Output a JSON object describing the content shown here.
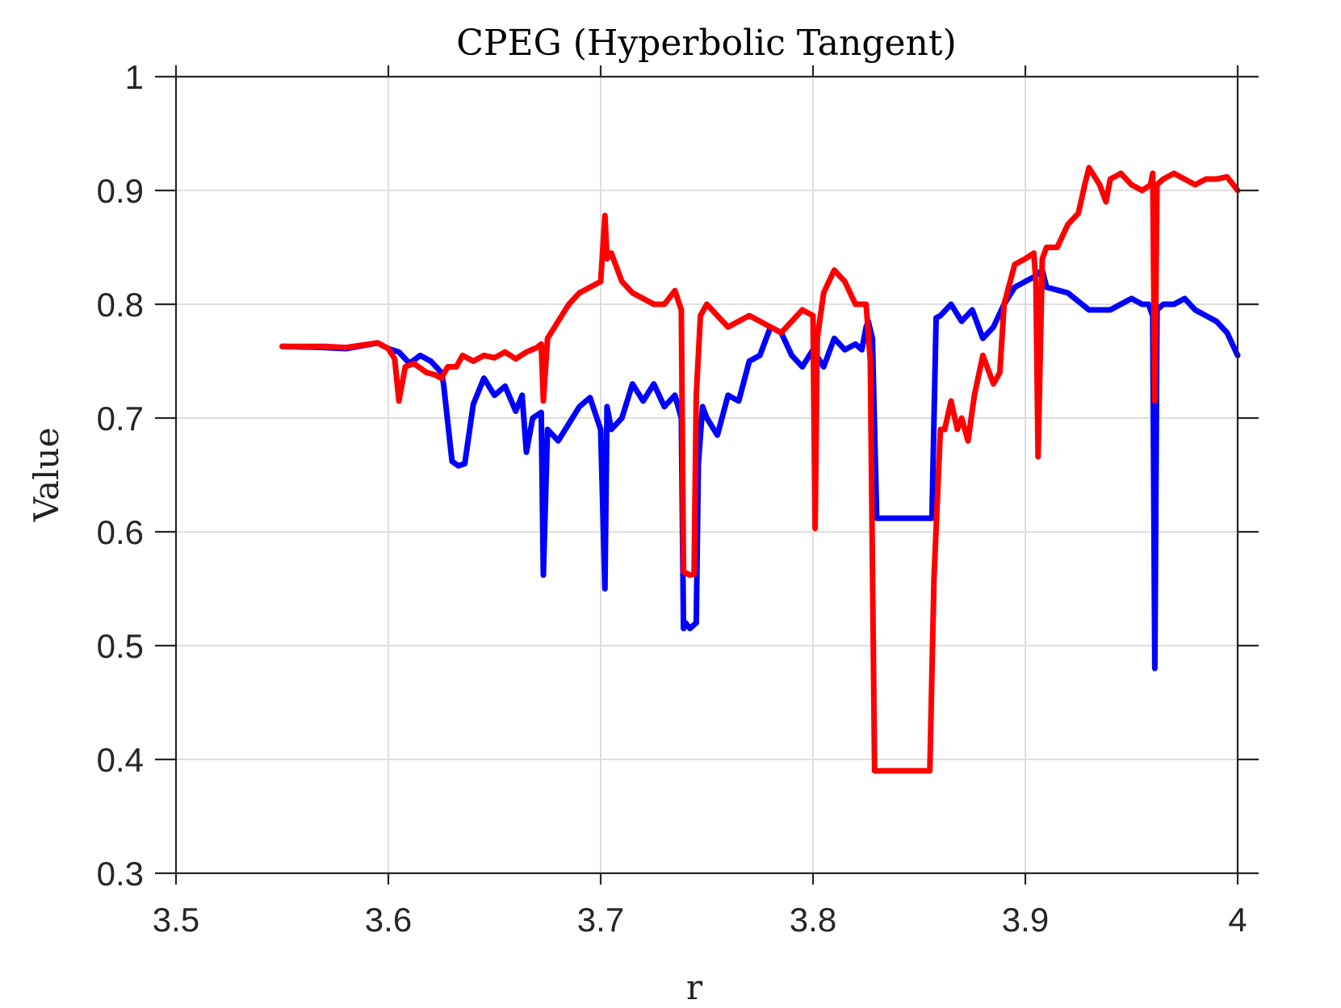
{
  "chart_data": {
    "type": "line",
    "title": "CPEG (Hyperbolic Tangent)",
    "xlabel": "r",
    "ylabel": "Value",
    "xlim": [
      3.5,
      4.0
    ],
    "ylim": [
      0.3,
      1.0
    ],
    "x_ticks": [
      "3.5",
      "3.6",
      "3.7",
      "3.8",
      "3.9",
      "4"
    ],
    "x_tick_values": [
      3.5,
      3.6,
      3.7,
      3.8,
      3.9,
      4.0
    ],
    "y_ticks": [
      "0.3",
      "0.4",
      "0.5",
      "0.6",
      "0.7",
      "0.8",
      "0.9",
      "1"
    ],
    "y_tick_values": [
      0.3,
      0.4,
      0.5,
      0.6,
      0.7,
      0.8,
      0.9,
      1.0
    ],
    "grid": true,
    "series": [
      {
        "color": "#0000ff",
        "x": [
          3.55,
          3.57,
          3.58,
          3.595,
          3.6,
          3.605,
          3.61,
          3.615,
          3.62,
          3.625,
          3.626,
          3.63,
          3.633,
          3.636,
          3.64,
          3.645,
          3.65,
          3.655,
          3.66,
          3.663,
          3.665,
          3.668,
          3.672,
          3.673,
          3.675,
          3.68,
          3.685,
          3.69,
          3.695,
          3.7,
          3.702,
          3.703,
          3.705,
          3.71,
          3.715,
          3.72,
          3.725,
          3.73,
          3.735,
          3.738,
          3.739,
          3.74,
          3.742,
          3.745,
          3.746,
          3.748,
          3.75,
          3.755,
          3.76,
          3.765,
          3.77,
          3.775,
          3.78,
          3.785,
          3.79,
          3.795,
          3.8,
          3.805,
          3.81,
          3.815,
          3.82,
          3.823,
          3.825,
          3.826,
          3.828,
          3.83,
          3.84,
          3.85,
          3.856,
          3.858,
          3.86,
          3.865,
          3.87,
          3.875,
          3.88,
          3.885,
          3.89,
          3.895,
          3.9,
          3.905,
          3.908,
          3.91,
          3.92,
          3.93,
          3.94,
          3.95,
          3.955,
          3.958,
          3.96,
          3.961,
          3.962,
          3.965,
          3.97,
          3.975,
          3.98,
          3.985,
          3.99,
          3.995,
          4.0
        ],
        "y": [
          0.763,
          0.762,
          0.761,
          0.766,
          0.761,
          0.758,
          0.748,
          0.755,
          0.75,
          0.74,
          0.73,
          0.662,
          0.658,
          0.66,
          0.712,
          0.735,
          0.72,
          0.728,
          0.706,
          0.72,
          0.67,
          0.7,
          0.705,
          0.562,
          0.69,
          0.68,
          0.695,
          0.71,
          0.718,
          0.69,
          0.55,
          0.71,
          0.69,
          0.7,
          0.73,
          0.715,
          0.73,
          0.71,
          0.72,
          0.7,
          0.515,
          0.52,
          0.515,
          0.52,
          0.66,
          0.71,
          0.7,
          0.685,
          0.72,
          0.715,
          0.75,
          0.755,
          0.78,
          0.775,
          0.755,
          0.745,
          0.76,
          0.745,
          0.77,
          0.76,
          0.765,
          0.76,
          0.78,
          0.785,
          0.77,
          0.612,
          0.612,
          0.612,
          0.612,
          0.788,
          0.79,
          0.8,
          0.785,
          0.795,
          0.77,
          0.78,
          0.8,
          0.815,
          0.82,
          0.825,
          0.83,
          0.815,
          0.81,
          0.795,
          0.795,
          0.805,
          0.8,
          0.8,
          0.79,
          0.48,
          0.795,
          0.8,
          0.8,
          0.805,
          0.795,
          0.79,
          0.785,
          0.775,
          0.755
        ]
      },
      {
        "color": "#ff0000",
        "x": [
          3.55,
          3.57,
          3.58,
          3.595,
          3.6,
          3.603,
          3.605,
          3.608,
          3.612,
          3.618,
          3.622,
          3.625,
          3.628,
          3.632,
          3.635,
          3.64,
          3.645,
          3.65,
          3.655,
          3.66,
          3.665,
          3.67,
          3.672,
          3.673,
          3.675,
          3.68,
          3.685,
          3.69,
          3.695,
          3.7,
          3.702,
          3.703,
          3.705,
          3.71,
          3.715,
          3.72,
          3.725,
          3.73,
          3.735,
          3.738,
          3.739,
          3.742,
          3.744,
          3.745,
          3.747,
          3.75,
          3.755,
          3.76,
          3.765,
          3.77,
          3.775,
          3.78,
          3.785,
          3.79,
          3.795,
          3.8,
          3.801,
          3.802,
          3.805,
          3.81,
          3.815,
          3.82,
          3.825,
          3.827,
          3.829,
          3.835,
          3.845,
          3.855,
          3.857,
          3.86,
          3.862,
          3.865,
          3.868,
          3.87,
          3.873,
          3.876,
          3.88,
          3.885,
          3.888,
          3.89,
          3.895,
          3.9,
          3.904,
          3.905,
          3.906,
          3.908,
          3.91,
          3.915,
          3.92,
          3.925,
          3.928,
          3.93,
          3.935,
          3.938,
          3.94,
          3.945,
          3.95,
          3.955,
          3.959,
          3.96,
          3.961,
          3.962,
          3.965,
          3.97,
          3.975,
          3.98,
          3.985,
          3.99,
          3.995,
          4.0
        ],
        "y": [
          0.763,
          0.763,
          0.762,
          0.766,
          0.761,
          0.752,
          0.715,
          0.745,
          0.748,
          0.74,
          0.738,
          0.735,
          0.745,
          0.745,
          0.755,
          0.75,
          0.755,
          0.753,
          0.758,
          0.752,
          0.758,
          0.762,
          0.765,
          0.715,
          0.77,
          0.785,
          0.8,
          0.81,
          0.815,
          0.82,
          0.878,
          0.84,
          0.845,
          0.82,
          0.81,
          0.805,
          0.8,
          0.8,
          0.812,
          0.795,
          0.565,
          0.562,
          0.563,
          0.72,
          0.79,
          0.8,
          0.79,
          0.78,
          0.785,
          0.79,
          0.785,
          0.78,
          0.775,
          0.785,
          0.795,
          0.79,
          0.603,
          0.77,
          0.81,
          0.83,
          0.82,
          0.8,
          0.8,
          0.75,
          0.39,
          0.39,
          0.39,
          0.39,
          0.56,
          0.69,
          0.69,
          0.715,
          0.69,
          0.7,
          0.68,
          0.72,
          0.755,
          0.73,
          0.74,
          0.8,
          0.835,
          0.84,
          0.845,
          0.82,
          0.666,
          0.84,
          0.85,
          0.85,
          0.87,
          0.88,
          0.905,
          0.92,
          0.905,
          0.89,
          0.91,
          0.915,
          0.905,
          0.9,
          0.905,
          0.915,
          0.715,
          0.905,
          0.91,
          0.915,
          0.91,
          0.905,
          0.91,
          0.91,
          0.912,
          0.9
        ]
      }
    ]
  }
}
